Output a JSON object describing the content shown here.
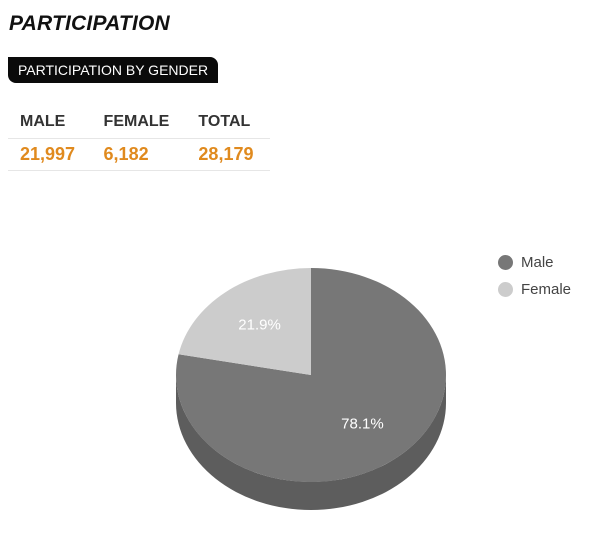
{
  "page": {
    "title": "PARTICIPATION"
  },
  "section": {
    "badge": "PARTICIPATION BY GENDER"
  },
  "stats": {
    "headers": [
      "MALE",
      "FEMALE",
      "TOTAL"
    ],
    "values": [
      "21,997",
      "6,182",
      "28,179"
    ]
  },
  "colors": {
    "male": "#777777",
    "male_side": "#5d5d5d",
    "female": "#cccccc",
    "accent": "#e08a1e"
  },
  "chart_data": {
    "type": "pie",
    "three_d": true,
    "slices": [
      {
        "name": "Male",
        "value": 78.1,
        "label": "78.1%",
        "color": "#777777"
      },
      {
        "name": "Female",
        "value": 21.9,
        "label": "21.9%",
        "color": "#cccccc"
      }
    ],
    "legend": {
      "position": "top-right",
      "items": [
        "Male",
        "Female"
      ]
    }
  }
}
